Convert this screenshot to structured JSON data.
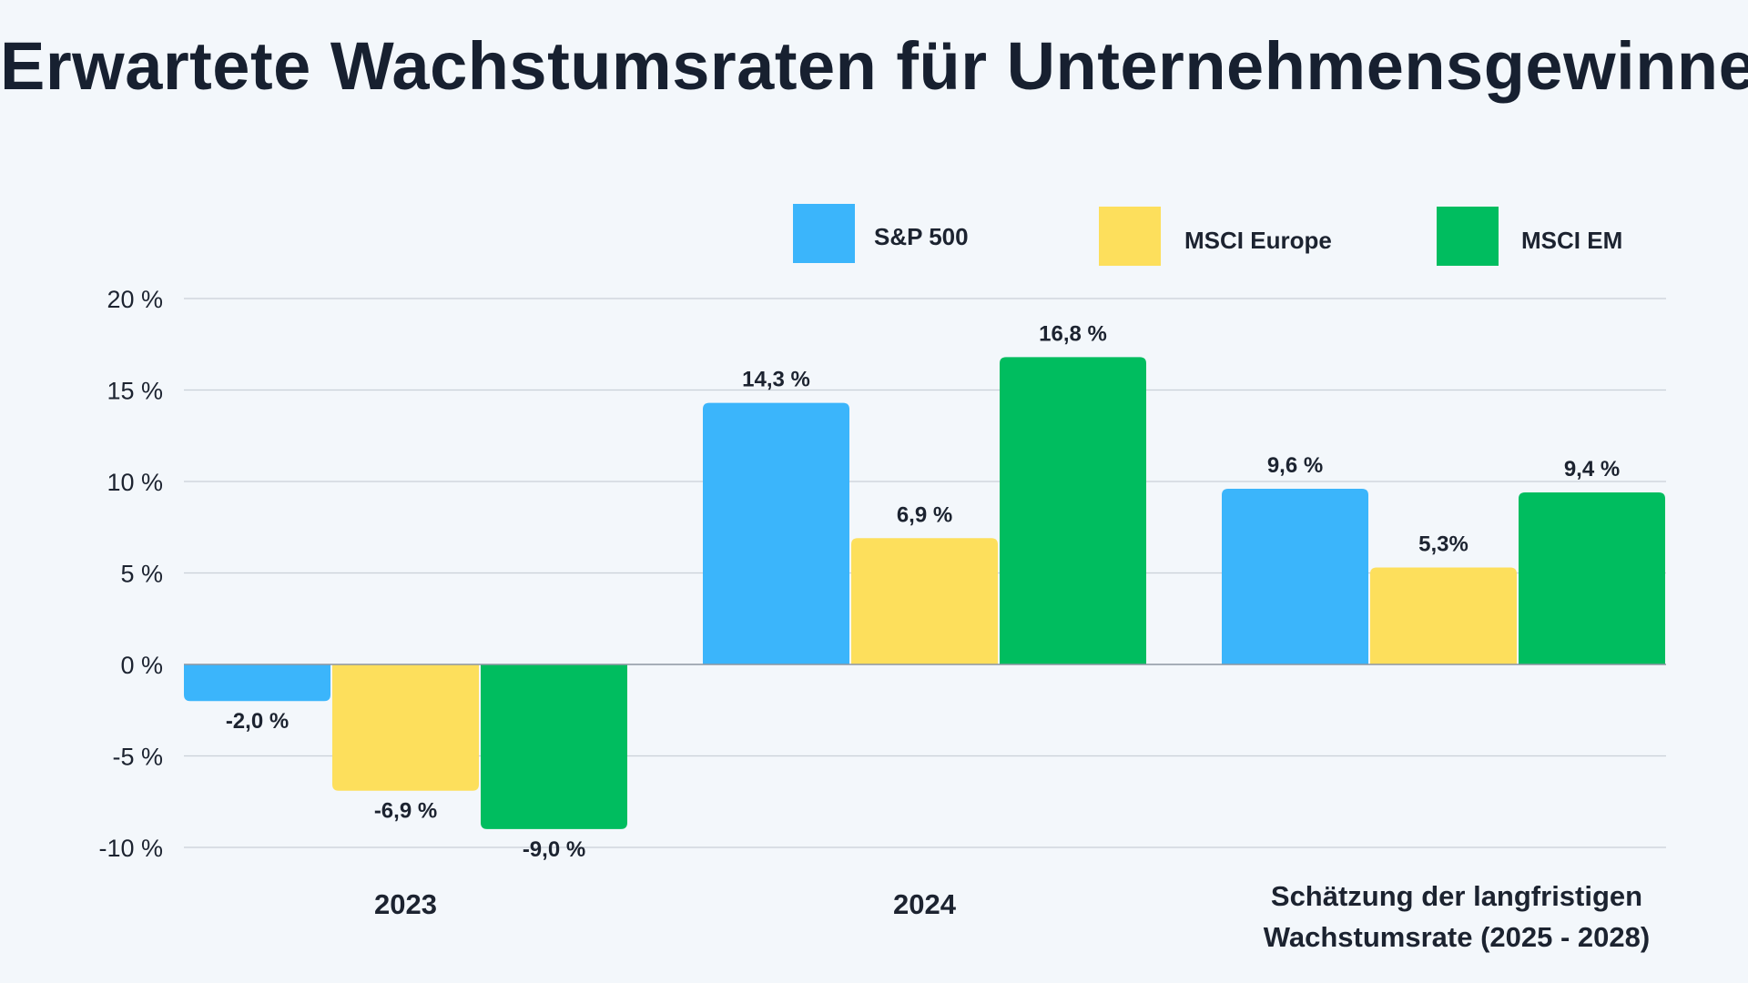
{
  "chart_data": {
    "type": "bar",
    "title": "Erwartete Wachstumsraten für Unternehmensgewinne",
    "categories": [
      [
        "2023"
      ],
      [
        "2024"
      ],
      [
        "Schätzung der langfristigen",
        "Wachstumsrate (2025 - 2028)"
      ]
    ],
    "series": [
      {
        "name": "S&P 500",
        "color": "#3bb5fb",
        "values": [
          -2.0,
          14.3,
          9.6
        ],
        "labels": [
          "-2,0 %",
          "14,3 %",
          "9,6 %"
        ]
      },
      {
        "name": "MSCI Europe",
        "color": "#fddf5c",
        "values": [
          -6.9,
          6.9,
          5.3
        ],
        "labels": [
          "-6,9 %",
          "6,9 %",
          "5,3%"
        ]
      },
      {
        "name": "MSCI EM",
        "color": "#00bd5f",
        "values": [
          -9.0,
          16.8,
          9.4
        ],
        "labels": [
          "-9,0 %",
          "16,8 %",
          "9,4 %"
        ]
      }
    ],
    "yticks": [
      20,
      15,
      10,
      5,
      0,
      -5,
      -10
    ],
    "ytick_labels": [
      "20 %",
      "15 %",
      "10 %",
      "5 %",
      "0 %",
      "-5 %",
      "-10 %"
    ],
    "ylim": [
      -10,
      20
    ],
    "xlabel": "",
    "ylabel": "",
    "grid": true,
    "legend_position": "top-right"
  }
}
